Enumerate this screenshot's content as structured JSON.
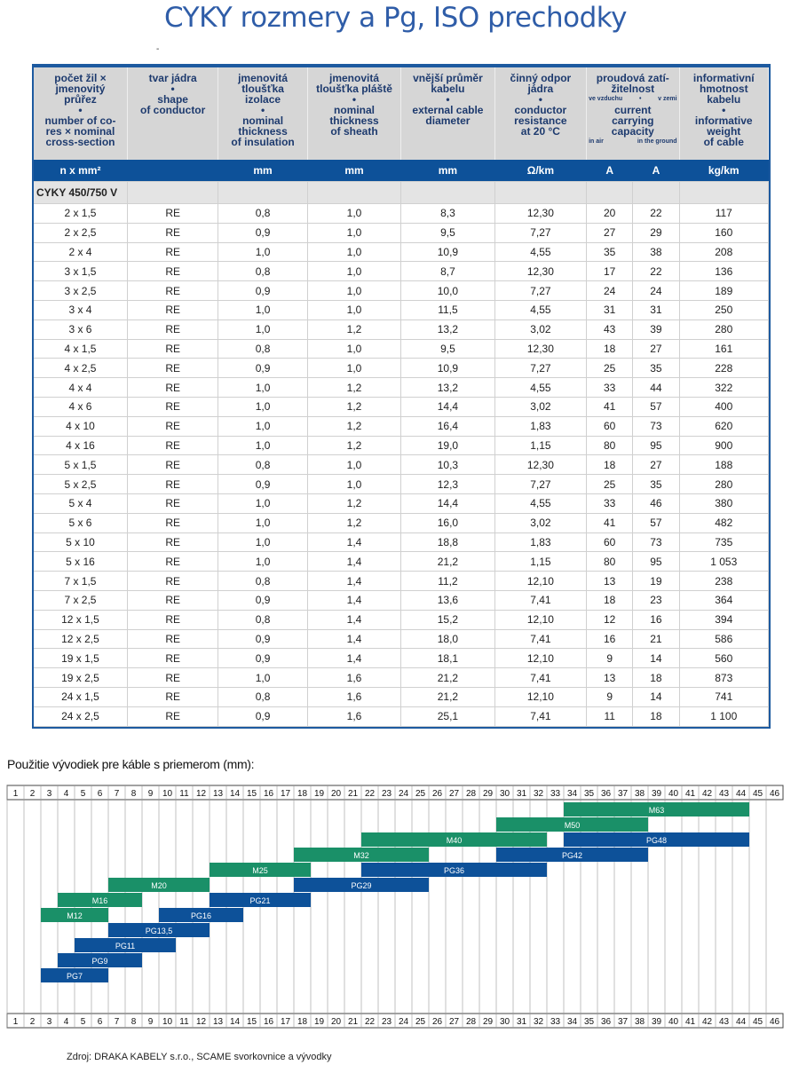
{
  "title": "CYKY rozmery a Pg, ISO prechodky",
  "table": {
    "headers": [
      [
        "počet žil ×",
        "jmenovitý",
        "průřez",
        "•",
        "number of co-",
        "res × nominal",
        "cross-section"
      ],
      [
        "tvar jádra",
        "",
        "",
        "•",
        "shape",
        "of conductor"
      ],
      [
        "jmenovitá",
        "tloušťka",
        "izolace",
        "•",
        "nominal",
        "thickness",
        "of insulation"
      ],
      [
        "jmenovitá",
        "tloušťka pláště",
        "•",
        "nominal",
        "thickness",
        "of  sheath"
      ],
      [
        "vnější průměr",
        "kabelu",
        "•",
        "external cable",
        "diameter"
      ],
      [
        "činný odpor",
        "jádra",
        "•",
        "conductor",
        "resistance",
        "at 20 °C"
      ],
      [
        "proudová zatí-",
        "žitelnost"
      ],
      [
        "informativní",
        "hmotnost",
        "kabelu",
        "•",
        "informative",
        "weight",
        "of cable"
      ]
    ],
    "current_sub": {
      "air_cz": "ve vzduchu",
      "dot": "•",
      "ground_cz": "v zemi",
      "en": [
        "current",
        "carrying",
        "capacity"
      ],
      "air_en": "in air",
      "ground_en": "in the ground"
    },
    "units": [
      "n x mm²",
      "",
      "mm",
      "mm",
      "mm",
      "Ω/km",
      "A",
      "A",
      "kg/km"
    ],
    "section": "CYKY 450/750 V",
    "rows": [
      [
        "2 x 1,5",
        "RE",
        "0,8",
        "1,0",
        "8,3",
        "12,30",
        "20",
        "22",
        "117"
      ],
      [
        "2 x 2,5",
        "RE",
        "0,9",
        "1,0",
        "9,5",
        "7,27",
        "27",
        "29",
        "160"
      ],
      [
        "2 x 4",
        "RE",
        "1,0",
        "1,0",
        "10,9",
        "4,55",
        "35",
        "38",
        "208"
      ],
      [
        "3 x 1,5",
        "RE",
        "0,8",
        "1,0",
        "8,7",
        "12,30",
        "17",
        "22",
        "136"
      ],
      [
        "3 x 2,5",
        "RE",
        "0,9",
        "1,0",
        "10,0",
        "7,27",
        "24",
        "24",
        "189"
      ],
      [
        "3 x 4",
        "RE",
        "1,0",
        "1,0",
        "11,5",
        "4,55",
        "31",
        "31",
        "250"
      ],
      [
        "3 x 6",
        "RE",
        "1,0",
        "1,2",
        "13,2",
        "3,02",
        "43",
        "39",
        "280"
      ],
      [
        "4 x 1,5",
        "RE",
        "0,8",
        "1,0",
        "9,5",
        "12,30",
        "18",
        "27",
        "161"
      ],
      [
        "4 x 2,5",
        "RE",
        "0,9",
        "1,0",
        "10,9",
        "7,27",
        "25",
        "35",
        "228"
      ],
      [
        "4 x 4",
        "RE",
        "1,0",
        "1,2",
        "13,2",
        "4,55",
        "33",
        "44",
        "322"
      ],
      [
        "4 x 6",
        "RE",
        "1,0",
        "1,2",
        "14,4",
        "3,02",
        "41",
        "57",
        "400"
      ],
      [
        "4 x 10",
        "RE",
        "1,0",
        "1,2",
        "16,4",
        "1,83",
        "60",
        "73",
        "620"
      ],
      [
        "4 x 16",
        "RE",
        "1,0",
        "1,2",
        "19,0",
        "1,15",
        "80",
        "95",
        "900"
      ],
      [
        "5 x 1,5",
        "RE",
        "0,8",
        "1,0",
        "10,3",
        "12,30",
        "18",
        "27",
        "188"
      ],
      [
        "5 x 2,5",
        "RE",
        "0,9",
        "1,0",
        "12,3",
        "7,27",
        "25",
        "35",
        "280"
      ],
      [
        "5 x 4",
        "RE",
        "1,0",
        "1,2",
        "14,4",
        "4,55",
        "33",
        "46",
        "380"
      ],
      [
        "5 x 6",
        "RE",
        "1,0",
        "1,2",
        "16,0",
        "3,02",
        "41",
        "57",
        "482"
      ],
      [
        "5 x 10",
        "RE",
        "1,0",
        "1,4",
        "18,8",
        "1,83",
        "60",
        "73",
        "735"
      ],
      [
        "5 x 16",
        "RE",
        "1,0",
        "1,4",
        "21,2",
        "1,15",
        "80",
        "95",
        "1 053"
      ],
      [
        "7 x 1,5",
        "RE",
        "0,8",
        "1,4",
        "11,2",
        "12,10",
        "13",
        "19",
        "238"
      ],
      [
        "7 x 2,5",
        "RE",
        "0,9",
        "1,4",
        "13,6",
        "7,41",
        "18",
        "23",
        "364"
      ],
      [
        "12 x 1,5",
        "RE",
        "0,8",
        "1,4",
        "15,2",
        "12,10",
        "12",
        "16",
        "394"
      ],
      [
        "12 x 2,5",
        "RE",
        "0,9",
        "1,4",
        "18,0",
        "7,41",
        "16",
        "21",
        "586"
      ],
      [
        "19 x 1,5",
        "RE",
        "0,9",
        "1,4",
        "18,1",
        "12,10",
        "9",
        "14",
        "560"
      ],
      [
        "19 x 2,5",
        "RE",
        "1,0",
        "1,6",
        "21,2",
        "7,41",
        "13",
        "18",
        "873"
      ],
      [
        "24 x 1,5",
        "RE",
        "0,8",
        "1,6",
        "21,2",
        "12,10",
        "9",
        "14",
        "741"
      ],
      [
        "24 x 2,5",
        "RE",
        "0,9",
        "1,6",
        "25,1",
        "7,41",
        "11",
        "18",
        "1 100"
      ]
    ]
  },
  "glands": {
    "caption": "Použitie vývodiek pre káble s priemerom (mm):",
    "scale_min": 1,
    "scale_max": 46,
    "colors": {
      "metric": "#1a9068",
      "pg": "#0d5199"
    },
    "bars": [
      {
        "label": "M63",
        "type": "metric",
        "from": 34,
        "to": 44,
        "row": 0
      },
      {
        "label": "M50",
        "type": "metric",
        "from": 30,
        "to": 38,
        "row": 1
      },
      {
        "label": "M40",
        "type": "metric",
        "from": 22,
        "to": 32,
        "row": 2
      },
      {
        "label": "PG48",
        "type": "pg",
        "from": 34,
        "to": 44,
        "row": 2
      },
      {
        "label": "M32",
        "type": "metric",
        "from": 18,
        "to": 25,
        "row": 3
      },
      {
        "label": "PG42",
        "type": "pg",
        "from": 30,
        "to": 38,
        "row": 3
      },
      {
        "label": "M25",
        "type": "metric",
        "from": 13,
        "to": 18,
        "row": 4
      },
      {
        "label": "PG36",
        "type": "pg",
        "from": 22,
        "to": 32,
        "row": 4
      },
      {
        "label": "M20",
        "type": "metric",
        "from": 7,
        "to": 12,
        "row": 5
      },
      {
        "label": "PG29",
        "type": "pg",
        "from": 18,
        "to": 25,
        "row": 5
      },
      {
        "label": "M16",
        "type": "metric",
        "from": 4,
        "to": 8,
        "row": 6
      },
      {
        "label": "PG21",
        "type": "pg",
        "from": 13,
        "to": 18,
        "row": 6
      },
      {
        "label": "M12",
        "type": "metric",
        "from": 3,
        "to": 6,
        "row": 7
      },
      {
        "label": "PG16",
        "type": "pg",
        "from": 10,
        "to": 14,
        "row": 7
      },
      {
        "label": "PG13,5",
        "type": "pg",
        "from": 7,
        "to": 12,
        "row": 8
      },
      {
        "label": "PG11",
        "type": "pg",
        "from": 5,
        "to": 10,
        "row": 9
      },
      {
        "label": "PG9",
        "type": "pg",
        "from": 4,
        "to": 8,
        "row": 10
      },
      {
        "label": "PG7",
        "type": "pg",
        "from": 3,
        "to": 6,
        "row": 11
      }
    ]
  },
  "source": "Zdroj: DRAKA KABELY s.r.o., SCAME svorkovnice a vývodky"
}
